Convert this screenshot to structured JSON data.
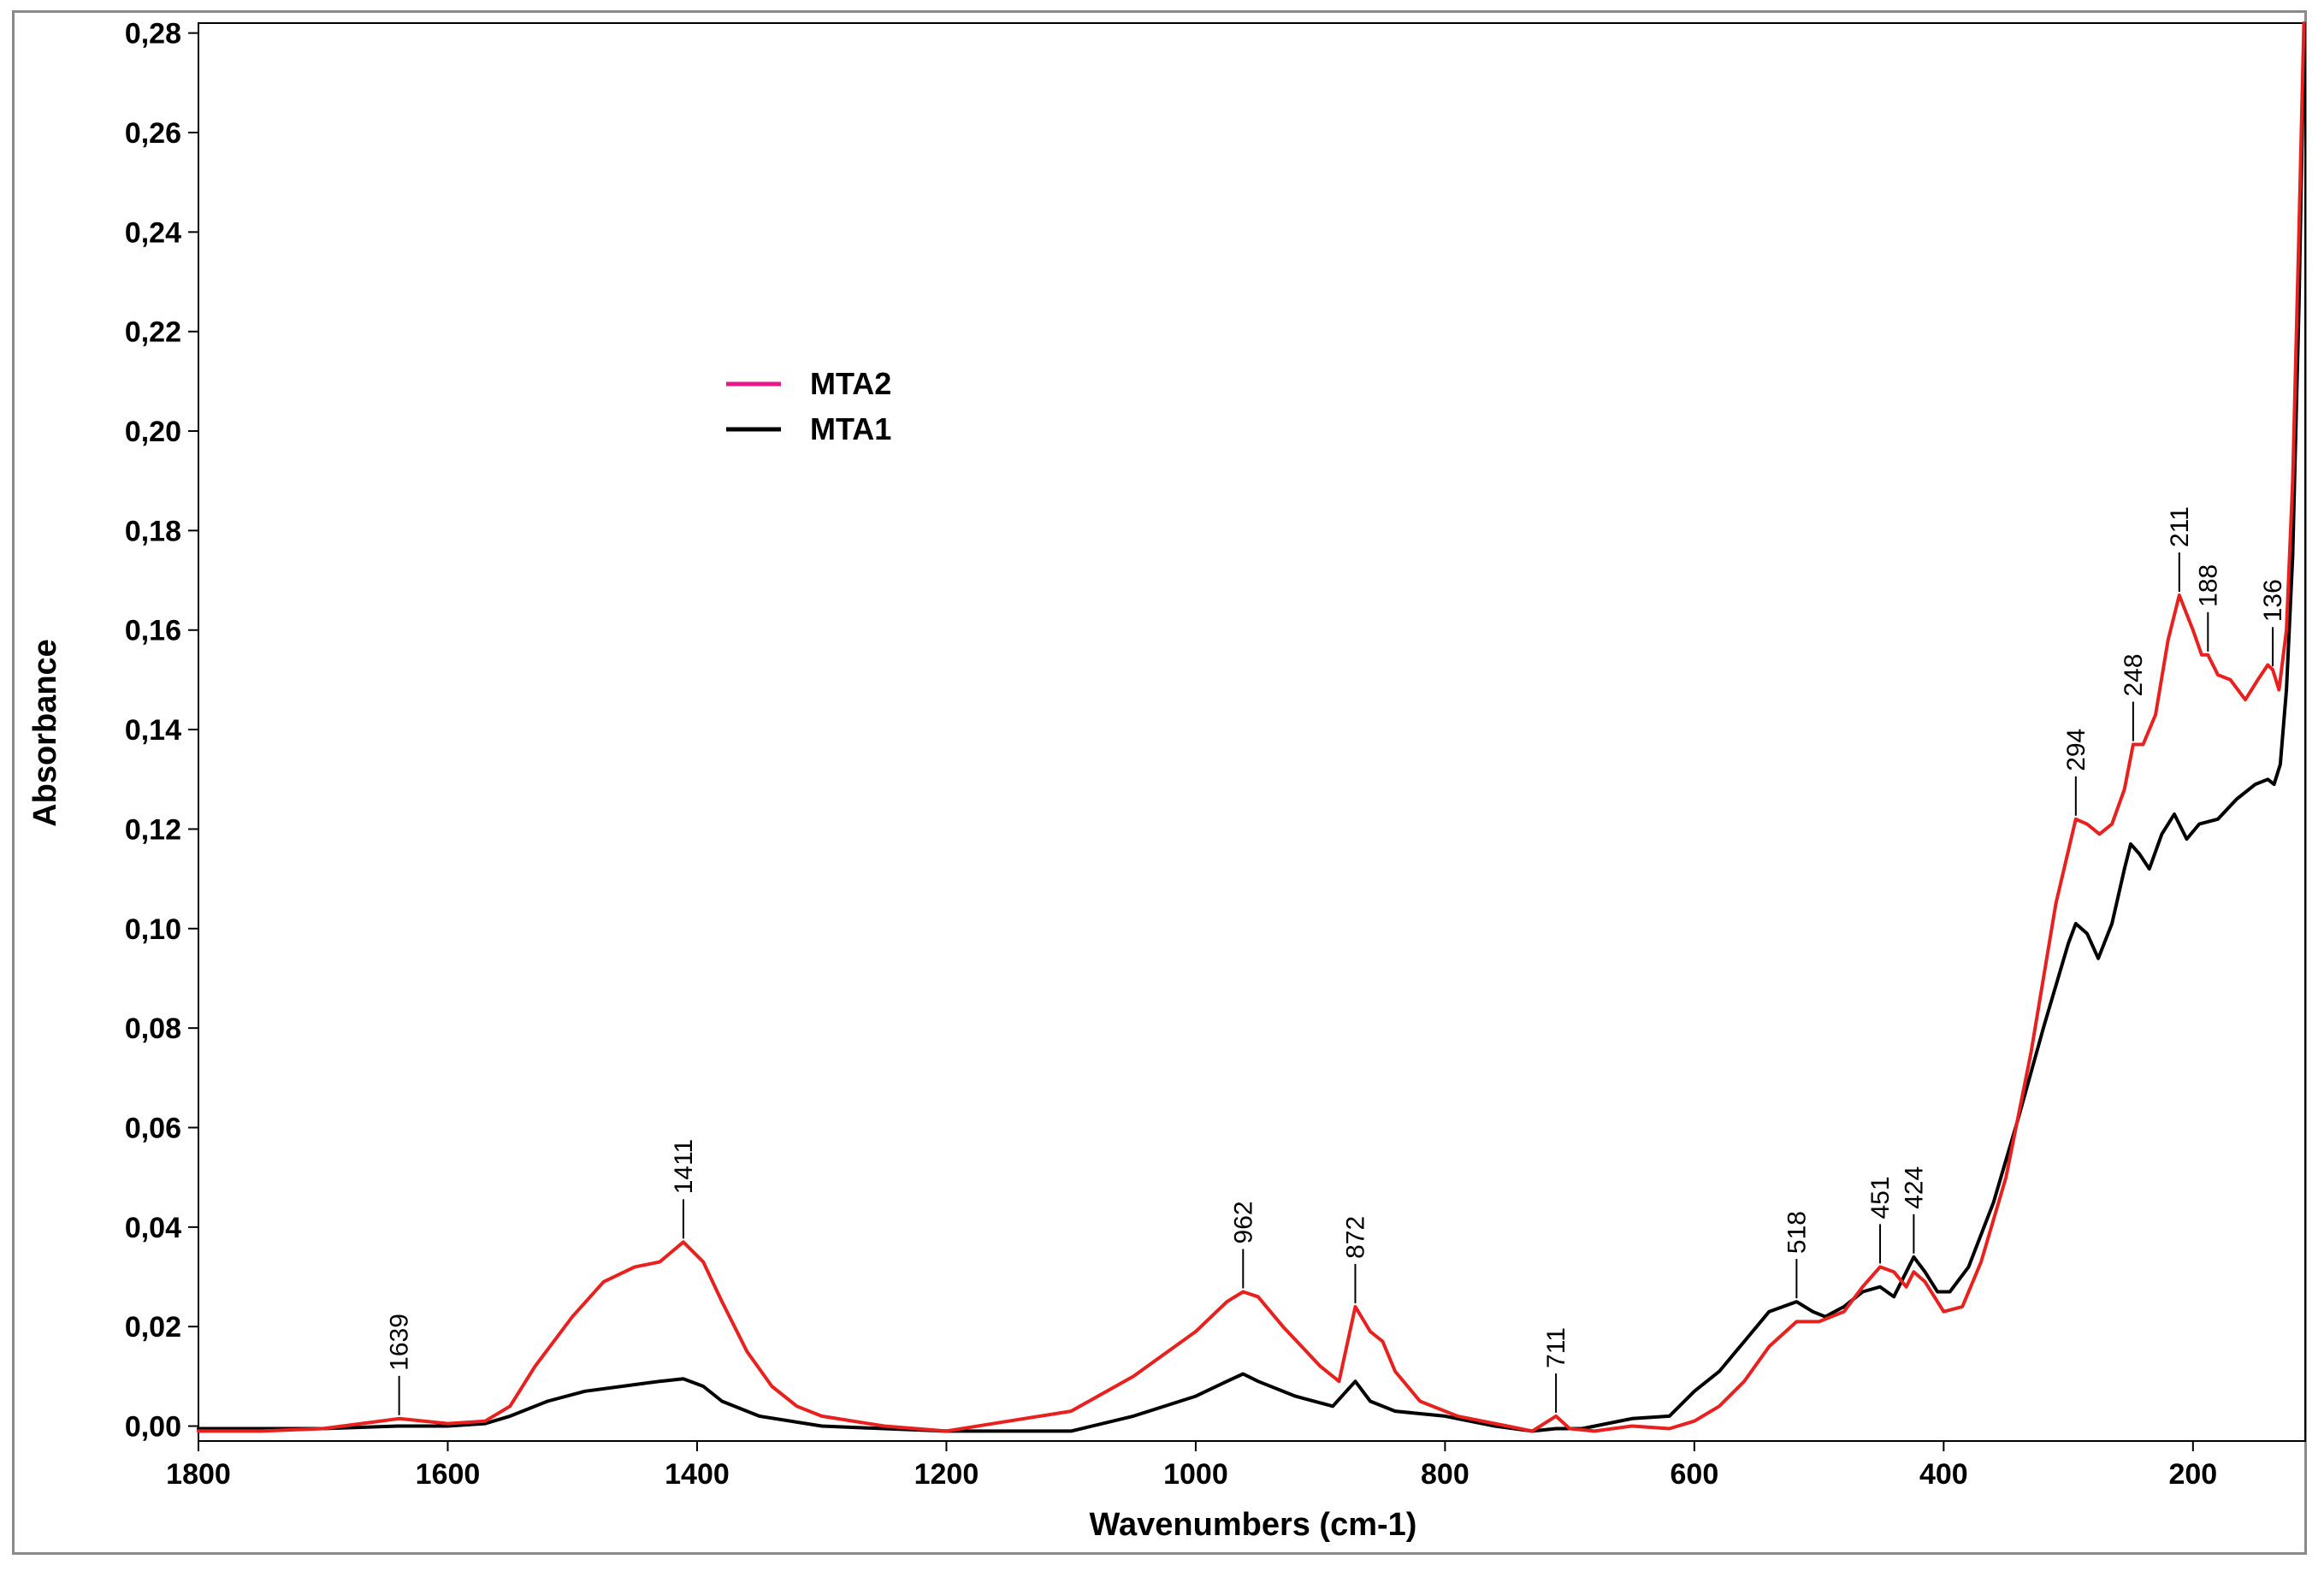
{
  "chart_data": {
    "type": "line",
    "xlabel": "Wavenumbers (cm-1)",
    "ylabel": "Absorbance",
    "xlim": [
      1800,
      110
    ],
    "ylim": [
      -0.003,
      0.282
    ],
    "x_ticks": [
      {
        "value": 1800,
        "label": "1800"
      },
      {
        "value": 1600,
        "label": "1600"
      },
      {
        "value": 1400,
        "label": "1400"
      },
      {
        "value": 1200,
        "label": "1200"
      },
      {
        "value": 1000,
        "label": "1000"
      },
      {
        "value": 800,
        "label": "800"
      },
      {
        "value": 600,
        "label": "600"
      },
      {
        "value": 400,
        "label": "400"
      },
      {
        "value": 200,
        "label": "200"
      }
    ],
    "y_ticks": [
      {
        "value": 0.0,
        "label": "0,00"
      },
      {
        "value": 0.02,
        "label": "0,02"
      },
      {
        "value": 0.04,
        "label": "0,04"
      },
      {
        "value": 0.06,
        "label": "0,06"
      },
      {
        "value": 0.08,
        "label": "0,08"
      },
      {
        "value": 0.1,
        "label": "0,10"
      },
      {
        "value": 0.12,
        "label": "0,12"
      },
      {
        "value": 0.14,
        "label": "0,14"
      },
      {
        "value": 0.16,
        "label": "0,16"
      },
      {
        "value": 0.18,
        "label": "0,18"
      },
      {
        "value": 0.2,
        "label": "0,20"
      },
      {
        "value": 0.22,
        "label": "0,22"
      },
      {
        "value": 0.24,
        "label": "0,24"
      },
      {
        "value": 0.26,
        "label": "0,26"
      },
      {
        "value": 0.28,
        "label": "0,28"
      }
    ],
    "legend": {
      "position": "upper-left",
      "entries": [
        {
          "name": "MTA2",
          "color": "#e8158c"
        },
        {
          "name": "MTA1",
          "color": "#000000"
        }
      ]
    },
    "series": [
      {
        "name": "MTA2",
        "color": "#e8201e",
        "points": [
          [
            1800,
            -0.001
          ],
          [
            1750,
            -0.001
          ],
          [
            1700,
            -0.0005
          ],
          [
            1660,
            0.0008
          ],
          [
            1639,
            0.0015
          ],
          [
            1600,
            0.0005
          ],
          [
            1570,
            0.001
          ],
          [
            1550,
            0.004
          ],
          [
            1530,
            0.012
          ],
          [
            1500,
            0.022
          ],
          [
            1475,
            0.029
          ],
          [
            1450,
            0.032
          ],
          [
            1430,
            0.033
          ],
          [
            1411,
            0.037
          ],
          [
            1395,
            0.033
          ],
          [
            1380,
            0.025
          ],
          [
            1360,
            0.015
          ],
          [
            1340,
            0.008
          ],
          [
            1320,
            0.004
          ],
          [
            1300,
            0.002
          ],
          [
            1250,
            0.0
          ],
          [
            1200,
            -0.001
          ],
          [
            1150,
            0.001
          ],
          [
            1100,
            0.003
          ],
          [
            1050,
            0.01
          ],
          [
            1000,
            0.019
          ],
          [
            975,
            0.025
          ],
          [
            962,
            0.027
          ],
          [
            950,
            0.026
          ],
          [
            930,
            0.02
          ],
          [
            900,
            0.012
          ],
          [
            885,
            0.009
          ],
          [
            872,
            0.024
          ],
          [
            860,
            0.019
          ],
          [
            850,
            0.017
          ],
          [
            840,
            0.011
          ],
          [
            820,
            0.005
          ],
          [
            790,
            0.002
          ],
          [
            750,
            0.0
          ],
          [
            730,
            -0.001
          ],
          [
            711,
            0.002
          ],
          [
            700,
            -0.0005
          ],
          [
            680,
            -0.001
          ],
          [
            650,
            0.0
          ],
          [
            620,
            -0.0005
          ],
          [
            600,
            0.001
          ],
          [
            580,
            0.004
          ],
          [
            560,
            0.009
          ],
          [
            540,
            0.016
          ],
          [
            518,
            0.021
          ],
          [
            500,
            0.021
          ],
          [
            480,
            0.023
          ],
          [
            465,
            0.028
          ],
          [
            451,
            0.032
          ],
          [
            440,
            0.031
          ],
          [
            430,
            0.028
          ],
          [
            424,
            0.031
          ],
          [
            415,
            0.029
          ],
          [
            400,
            0.023
          ],
          [
            385,
            0.024
          ],
          [
            370,
            0.033
          ],
          [
            350,
            0.05
          ],
          [
            330,
            0.075
          ],
          [
            310,
            0.105
          ],
          [
            294,
            0.122
          ],
          [
            285,
            0.121
          ],
          [
            275,
            0.119
          ],
          [
            265,
            0.121
          ],
          [
            255,
            0.128
          ],
          [
            248,
            0.137
          ],
          [
            240,
            0.137
          ],
          [
            230,
            0.143
          ],
          [
            220,
            0.158
          ],
          [
            211,
            0.167
          ],
          [
            200,
            0.16
          ],
          [
            193,
            0.155
          ],
          [
            188,
            0.155
          ],
          [
            180,
            0.151
          ],
          [
            170,
            0.15
          ],
          [
            158,
            0.146
          ],
          [
            148,
            0.15
          ],
          [
            140,
            0.153
          ],
          [
            136,
            0.152
          ],
          [
            131,
            0.148
          ],
          [
            125,
            0.16
          ],
          [
            120,
            0.19
          ],
          [
            115,
            0.24
          ],
          [
            111,
            0.282
          ]
        ]
      },
      {
        "name": "MTA1",
        "color": "#000000",
        "points": [
          [
            1800,
            -0.0005
          ],
          [
            1700,
            -0.0005
          ],
          [
            1640,
            0.0
          ],
          [
            1600,
            0.0
          ],
          [
            1570,
            0.0005
          ],
          [
            1550,
            0.002
          ],
          [
            1520,
            0.005
          ],
          [
            1490,
            0.007
          ],
          [
            1460,
            0.008
          ],
          [
            1430,
            0.009
          ],
          [
            1411,
            0.0095
          ],
          [
            1395,
            0.008
          ],
          [
            1380,
            0.005
          ],
          [
            1350,
            0.002
          ],
          [
            1300,
            0.0
          ],
          [
            1250,
            -0.0005
          ],
          [
            1200,
            -0.001
          ],
          [
            1100,
            -0.001
          ],
          [
            1050,
            0.002
          ],
          [
            1000,
            0.006
          ],
          [
            975,
            0.009
          ],
          [
            962,
            0.0105
          ],
          [
            950,
            0.009
          ],
          [
            920,
            0.006
          ],
          [
            890,
            0.004
          ],
          [
            872,
            0.009
          ],
          [
            860,
            0.005
          ],
          [
            840,
            0.003
          ],
          [
            800,
            0.002
          ],
          [
            760,
            0.0
          ],
          [
            730,
            -0.001
          ],
          [
            711,
            -0.0005
          ],
          [
            690,
            -0.0005
          ],
          [
            650,
            0.0015
          ],
          [
            620,
            0.002
          ],
          [
            600,
            0.007
          ],
          [
            580,
            0.011
          ],
          [
            560,
            0.017
          ],
          [
            540,
            0.023
          ],
          [
            518,
            0.025
          ],
          [
            505,
            0.023
          ],
          [
            495,
            0.022
          ],
          [
            480,
            0.024
          ],
          [
            465,
            0.027
          ],
          [
            451,
            0.028
          ],
          [
            440,
            0.026
          ],
          [
            424,
            0.034
          ],
          [
            415,
            0.031
          ],
          [
            405,
            0.027
          ],
          [
            395,
            0.027
          ],
          [
            380,
            0.032
          ],
          [
            360,
            0.045
          ],
          [
            340,
            0.062
          ],
          [
            320,
            0.08
          ],
          [
            300,
            0.097
          ],
          [
            294,
            0.101
          ],
          [
            285,
            0.099
          ],
          [
            276,
            0.094
          ],
          [
            265,
            0.101
          ],
          [
            255,
            0.112
          ],
          [
            250,
            0.117
          ],
          [
            243,
            0.115
          ],
          [
            235,
            0.112
          ],
          [
            225,
            0.119
          ],
          [
            215,
            0.123
          ],
          [
            205,
            0.118
          ],
          [
            195,
            0.121
          ],
          [
            180,
            0.122
          ],
          [
            165,
            0.126
          ],
          [
            150,
            0.129
          ],
          [
            140,
            0.13
          ],
          [
            135,
            0.129
          ],
          [
            130,
            0.133
          ],
          [
            125,
            0.148
          ],
          [
            120,
            0.175
          ],
          [
            115,
            0.225
          ],
          [
            111,
            0.278
          ]
        ]
      }
    ],
    "annotations": [
      {
        "label": "1639",
        "x": 1639,
        "y": 0.0015
      },
      {
        "label": "1411",
        "x": 1411,
        "y": 0.037
      },
      {
        "label": "962",
        "x": 962,
        "y": 0.027
      },
      {
        "label": "872",
        "x": 872,
        "y": 0.024
      },
      {
        "label": "711",
        "x": 711,
        "y": 0.002
      },
      {
        "label": "518",
        "x": 518,
        "y": 0.025
      },
      {
        "label": "451",
        "x": 451,
        "y": 0.032
      },
      {
        "label": "424",
        "x": 424,
        "y": 0.034
      },
      {
        "label": "294",
        "x": 294,
        "y": 0.122
      },
      {
        "label": "248",
        "x": 248,
        "y": 0.137
      },
      {
        "label": "211",
        "x": 211,
        "y": 0.167
      },
      {
        "label": "188",
        "x": 188,
        "y": 0.155
      },
      {
        "label": "136",
        "x": 136,
        "y": 0.152
      }
    ]
  }
}
